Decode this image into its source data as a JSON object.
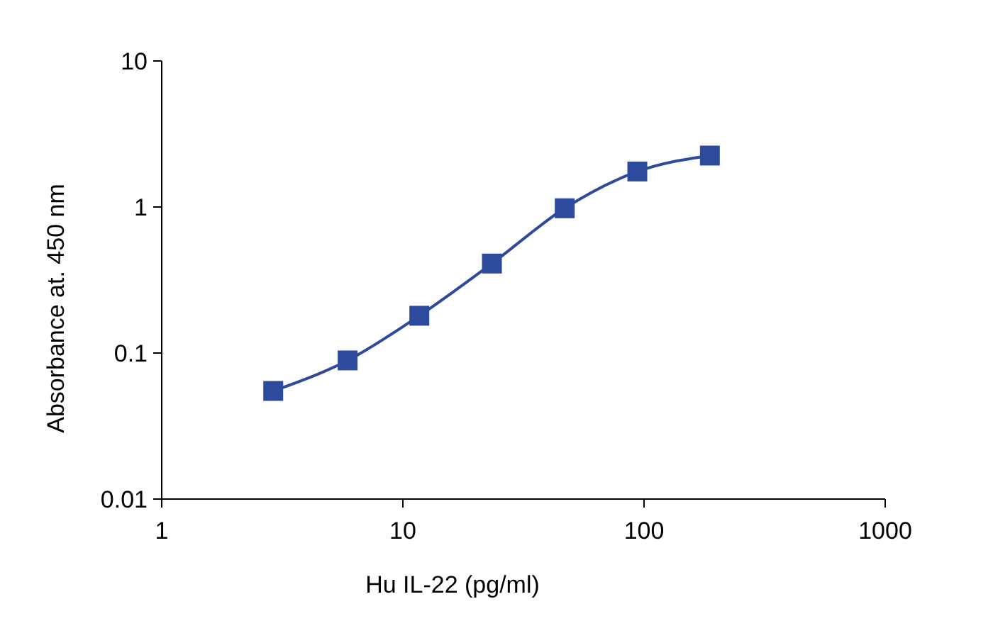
{
  "chart_data": {
    "type": "line",
    "xlabel": "Hu IL-22 (pg/ml)",
    "ylabel": "Absorbance at. 450 nm",
    "log": "xy",
    "marker": "square",
    "line_style": "solid",
    "grid": false,
    "x": [
      2.9,
      5.9,
      11.7,
      23.4,
      46.9,
      93.8,
      187.5
    ],
    "series": [
      {
        "color": "#2e4a9c",
        "values": [
          0.055,
          0.089,
          0.18,
          0.41,
          0.98,
          1.75,
          2.25
        ]
      }
    ],
    "xlim": [
      1,
      1000
    ],
    "xticks": [
      1,
      10,
      100,
      1000
    ],
    "ylim": [
      0.01,
      10
    ],
    "yticks": [
      0.01,
      0.1,
      1,
      10
    ]
  }
}
